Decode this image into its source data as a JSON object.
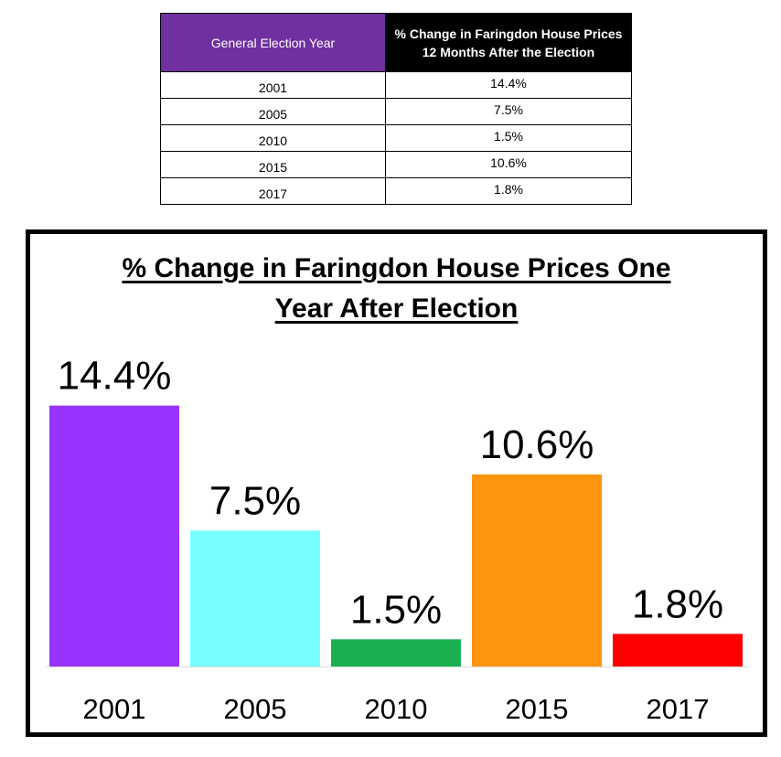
{
  "table": {
    "header_year": "General Election Year",
    "header_change": "% Change in Faringdon House Prices 12 Months After the Election",
    "rows": [
      {
        "year": "2001",
        "change": "14.4%"
      },
      {
        "year": "2005",
        "change": "7.5%"
      },
      {
        "year": "2010",
        "change": "1.5%"
      },
      {
        "year": "2015",
        "change": "10.6%"
      },
      {
        "year": "2017",
        "change": "1.8%"
      }
    ],
    "header_year_color": "#7030a0",
    "header_change_color": "#000000"
  },
  "chart_data": {
    "type": "bar",
    "title_lines": [
      "% Change in Faringdon House Prices One",
      "Year After Election"
    ],
    "categories": [
      "2001",
      "2005",
      "2010",
      "2015",
      "2017"
    ],
    "values": [
      14.4,
      7.5,
      1.5,
      10.6,
      1.8
    ],
    "data_labels": [
      "14.4%",
      "7.5%",
      "1.5%",
      "10.6%",
      "1.8%"
    ],
    "colors": [
      "#9933ff",
      "#77ffff",
      "#1ab050",
      "#ff9411",
      "#ff0000"
    ],
    "ylim": [
      0,
      16.5
    ],
    "grid": false,
    "legend": "none"
  }
}
